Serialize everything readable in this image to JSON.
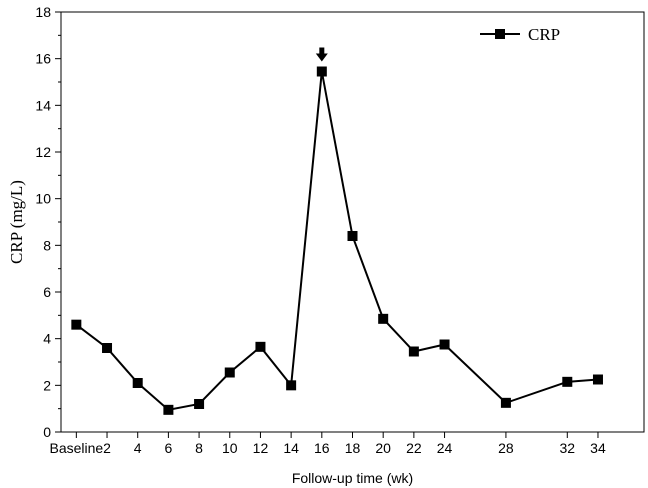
{
  "chart_data": {
    "type": "line",
    "xlabel": "Follow-up time (wk)",
    "ylabel": "CRP (mg/L)",
    "ylim": [
      0,
      18
    ],
    "yticks": [
      0,
      2,
      4,
      6,
      8,
      10,
      12,
      14,
      16,
      18
    ],
    "xticks": [
      {
        "x": 0,
        "label": "Baseline"
      },
      {
        "x": 2,
        "label": "2"
      },
      {
        "x": 4,
        "label": "4"
      },
      {
        "x": 6,
        "label": "6"
      },
      {
        "x": 8,
        "label": "8"
      },
      {
        "x": 10,
        "label": "10"
      },
      {
        "x": 12,
        "label": "12"
      },
      {
        "x": 14,
        "label": "14"
      },
      {
        "x": 16,
        "label": "16"
      },
      {
        "x": 18,
        "label": "18"
      },
      {
        "x": 20,
        "label": "20"
      },
      {
        "x": 22,
        "label": "22"
      },
      {
        "x": 24,
        "label": "24"
      },
      {
        "x": 28,
        "label": "28"
      },
      {
        "x": 32,
        "label": "32"
      },
      {
        "x": 34,
        "label": "34"
      }
    ],
    "xlim": [
      -1,
      37
    ],
    "legend": "top-right",
    "series": [
      {
        "name": "CRP",
        "color": "#000000",
        "marker": "square",
        "x": [
          0,
          2,
          4,
          6,
          8,
          10,
          12,
          14,
          16,
          18,
          20,
          22,
          24,
          28,
          32,
          34
        ],
        "values": [
          4.6,
          3.6,
          2.1,
          0.95,
          1.2,
          2.55,
          3.65,
          2.0,
          15.45,
          8.4,
          4.85,
          3.45,
          3.75,
          1.25,
          2.15,
          2.25
        ]
      }
    ],
    "annotations": [
      {
        "type": "arrow",
        "icon": "down-arrow-icon",
        "x": 16,
        "y": 15.45
      }
    ]
  }
}
